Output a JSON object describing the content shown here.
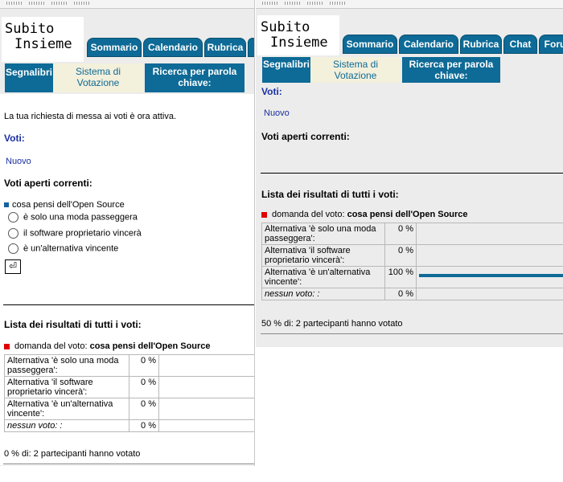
{
  "logo": {
    "line1": "Subito",
    "line2": "Insieme"
  },
  "tabs": [
    "Sommario",
    "Calendario",
    "Rubrica",
    "Chat",
    "Foru"
  ],
  "subnav": [
    "Segnalibri",
    "Sistema di Votazione",
    "Ricerca per parola chiave:"
  ],
  "left": {
    "notice": "La tua richiesta di messa ai voti è ora attiva.",
    "voti_heading": "Voti:",
    "nuovo_link": "Nuovo",
    "open_heading": "Voti aperti correnti:",
    "question": "cosa pensi dell'Open Source",
    "options": [
      "è solo una moda passeggera",
      "il software proprietario vincerà",
      "è un'alternativa vincente"
    ],
    "submit_icon": "return-arrow-icon",
    "results_heading": "Lista dei risultati di tutti i voti:",
    "question_label": "domanda del voto:",
    "results": [
      {
        "label": "Alternativa 'è solo una moda passeggera':",
        "pct": "0 %",
        "value": 0
      },
      {
        "label": "Alternativa 'il software proprietario vincerà':",
        "pct": "0 %",
        "value": 0
      },
      {
        "label": "Alternativa 'è un'alternativa vincente':",
        "pct": "0 %",
        "value": 0
      },
      {
        "label": "nessun voto: :",
        "pct": "0 %",
        "value": 0
      }
    ],
    "summary": "0 % di: 2 partecipanti hanno votato"
  },
  "right": {
    "voti_heading": "Voti:",
    "nuovo_link": "Nuovo",
    "open_heading": "Voti aperti correnti:",
    "results_heading": "Lista dei risultati di tutti i voti:",
    "question_label": "domanda del voto:",
    "question": "cosa pensi dell'Open Source",
    "results": [
      {
        "label": "Alternativa 'è solo una moda passeggera':",
        "pct": "0 %",
        "value": 0
      },
      {
        "label": "Alternativa 'il software proprietario vincerà':",
        "pct": "0 %",
        "value": 0
      },
      {
        "label": "Alternativa 'è un'alternativa vincente':",
        "pct": "100 %",
        "value": 100
      },
      {
        "label": "nessun voto: :",
        "pct": "0 %",
        "value": 0
      }
    ],
    "summary": "50 % di: 2 partecipanti hanno votato"
  },
  "colors": {
    "tab_blue": "#0e6a96",
    "link_blue": "#1a2fa3",
    "red_bullet": "#e00000",
    "active_sub": "#f3f0dc"
  }
}
